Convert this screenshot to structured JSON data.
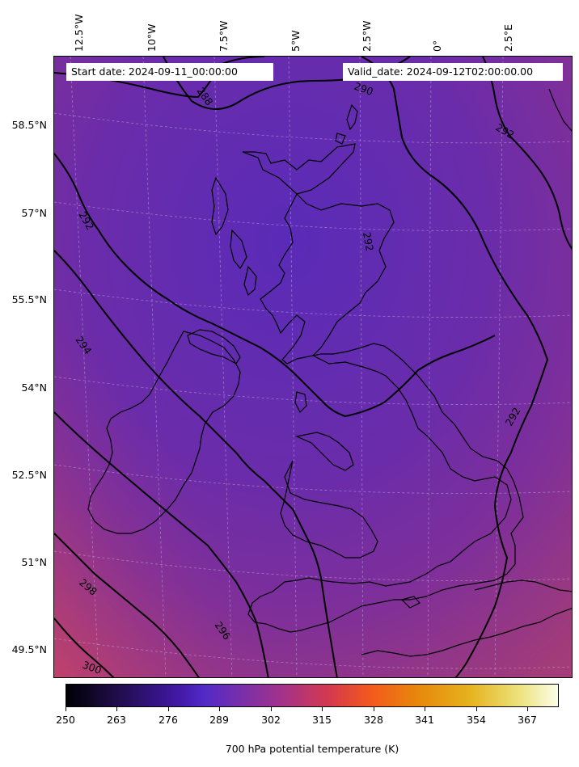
{
  "header": {
    "start_date": "Start date: 2024-09-11_00:00:00",
    "valid_date": "Valid_date: 2024-09-12T02:00:00.00"
  },
  "longitude_labels": [
    "12.5°W",
    "10°W",
    "7.5°W",
    "5°W",
    "2.5°W",
    "0°",
    "2.5°E"
  ],
  "latitude_labels": [
    "58.5°N",
    "57°N",
    "55.5°N",
    "54°N",
    "52.5°N",
    "51°N",
    "49.5°N"
  ],
  "contour_labels": [
    "288",
    "290",
    "292",
    "292",
    "292",
    "292",
    "294",
    "296",
    "298",
    "300"
  ],
  "colorbar": {
    "title": "700 hPa potential temperature (K)",
    "ticks": [
      "250",
      "263",
      "276",
      "289",
      "302",
      "315",
      "328",
      "341",
      "354",
      "367"
    ],
    "range": [
      250,
      375
    ],
    "colormap": "CMRmap"
  },
  "colors": {
    "field_cool": "#5a2bb8",
    "field_mid": "#7a2f9e",
    "field_warm": "#b8406a",
    "contour": "#000000",
    "coastline": "#000000"
  }
}
